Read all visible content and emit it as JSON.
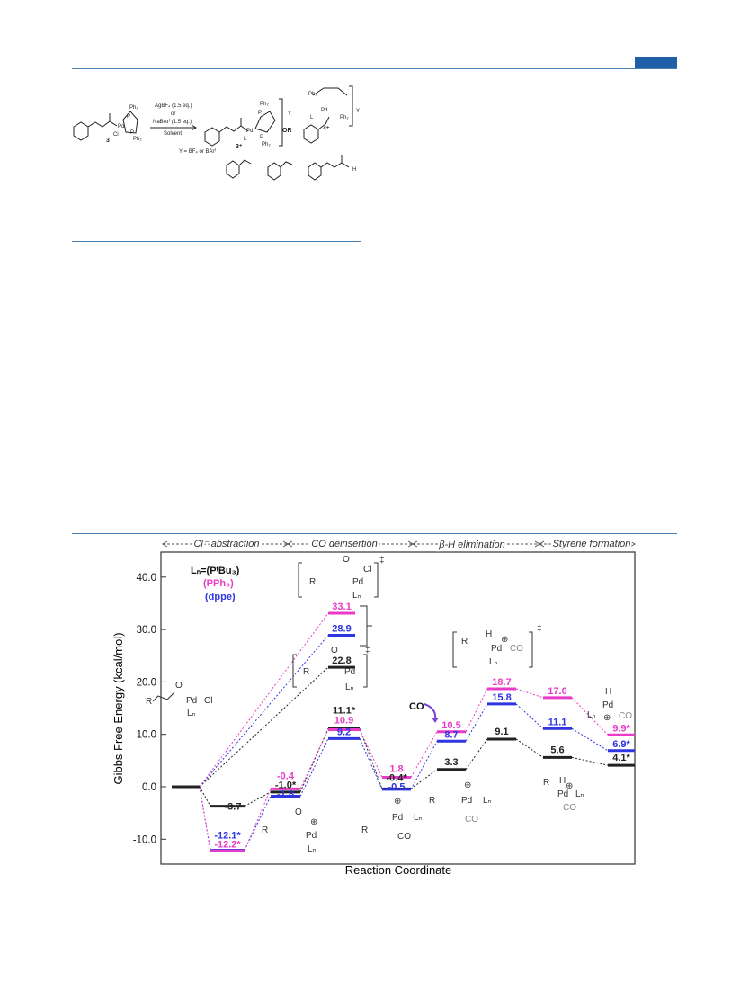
{
  "scheme": {
    "reagent_line1": "AgBF₄ (1.5 eq.)",
    "reagent_line2": "or",
    "reagent_line3": "NaBArᶠ (1.5 eq.)",
    "reagent_line4": "Solvent",
    "counterion_note": "Y = BF₄ or BArᶠ",
    "compound_3": "3",
    "compound_3plus": "3⁺",
    "compound_4plus": "4⁺",
    "or_label": "OR",
    "ph2": "Ph₂",
    "p": "P",
    "pd": "Pd",
    "cl": "Cl",
    "l": "L",
    "y_ion": "Y",
    "h": "H"
  },
  "chart_data": {
    "type": "energy-profile",
    "ylabel": "Gibbs Free Energy (kcal/mol)",
    "xlabel": "Reaction Coordinate",
    "ylim": [
      -13,
      45
    ],
    "yticks": [
      "40.0",
      "30.0",
      "20.0",
      "10.0",
      "0.0",
      "-10.0"
    ],
    "ytick_values": [
      40,
      30,
      20,
      10,
      0,
      -10
    ],
    "phases": [
      "Cl⁻ abstraction",
      "CO deinsertion",
      "β-H elimination",
      "Styrene formation"
    ],
    "legend_title": "Lₙ=(PᵗBu₃)",
    "legend_items": [
      {
        "label": "(PPh₃)",
        "color": "#e83cc8"
      },
      {
        "label": "(dppe)",
        "color": "#2f35e0"
      }
    ],
    "colors": {
      "PtBu3": "#222222",
      "PPh3": "#e83cc8",
      "dppe": "#2f35e0"
    },
    "series": [
      {
        "key": "PtBu3",
        "values": [
          0.0,
          -3.7,
          -1.0,
          11.1,
          -0.4,
          3.3,
          9.1,
          5.6,
          4.1
        ],
        "labels": [
          "",
          "-3.7",
          "-1.0*",
          "11.1*",
          "-0.4*",
          "3.3",
          "9.1",
          "5.6",
          "4.1*"
        ]
      },
      {
        "key": "PPh3",
        "values": [
          0.0,
          -12.2,
          -0.4,
          10.9,
          1.8,
          10.5,
          18.7,
          17.0,
          9.9
        ],
        "labels": [
          "",
          "-12.2*",
          "-0.4",
          "10.9",
          "1.8",
          "10.5",
          "18.7",
          "17.0",
          "9.9*"
        ]
      },
      {
        "key": "dppe",
        "values": [
          0.0,
          -12.1,
          -1.8,
          9.2,
          -0.5,
          8.7,
          15.8,
          11.1,
          6.9
        ],
        "labels": [
          "",
          "-12.1*",
          "-1.8",
          "9.2",
          "-0.5",
          "8.7",
          "15.8",
          "11.1",
          "6.9*"
        ]
      }
    ],
    "direct_ts": {
      "values": {
        "PPh3": 33.1,
        "dppe": 28.9,
        "PtBu3": 22.8
      },
      "labels": {
        "PPh3": "33.1",
        "dppe": "28.9",
        "PtBu3": "22.8"
      }
    },
    "annotations": {
      "co_arrow": "CO",
      "r": "R",
      "pd": "Pd",
      "cl": "Cl",
      "ln": "Lₙ",
      "co": "CO",
      "o": "O",
      "h": "H",
      "plus": "⊕",
      "dagger": "‡"
    }
  }
}
